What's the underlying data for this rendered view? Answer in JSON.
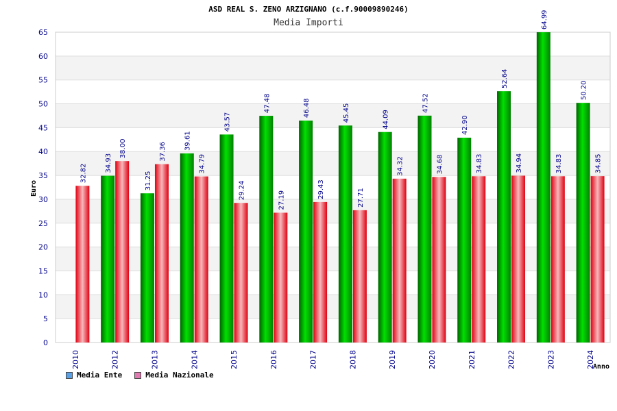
{
  "chart_data": {
    "type": "bar",
    "title": "ASD REAL S. ZENO ARZIGNANO (c.f.90009890246)",
    "subtitle": "Media Importi",
    "xlabel": "Anno",
    "ylabel": "Euro",
    "ylim": [
      0,
      65
    ],
    "ytick_step": 5,
    "grid": true,
    "legend_position": "bottom-left",
    "categories": [
      "2010",
      "2012",
      "2013",
      "2014",
      "2015",
      "2016",
      "2017",
      "2018",
      "2019",
      "2020",
      "2021",
      "2022",
      "2023",
      "2024"
    ],
    "series": [
      {
        "name": "Media Ente",
        "color": "#00b400",
        "values": [
          null,
          34.93,
          31.25,
          39.61,
          43.57,
          47.48,
          46.48,
          45.45,
          44.09,
          47.52,
          42.9,
          52.64,
          64.99,
          50.2
        ],
        "labels": [
          "",
          "34.93",
          "31.25",
          "39.61",
          "43.57",
          "47.48",
          "46.48",
          "45.45",
          "44.09",
          "47.52",
          "42.90",
          "52.64",
          "64.99",
          "50.20"
        ]
      },
      {
        "name": "Media Nazionale",
        "color": "#e8202a",
        "values": [
          32.82,
          38.0,
          37.36,
          34.79,
          29.24,
          27.19,
          29.43,
          27.71,
          34.32,
          34.68,
          34.83,
          34.94,
          34.83,
          34.85
        ],
        "labels": [
          "32.82",
          "38.00",
          "37.36",
          "34.79",
          "29.24",
          "27.19",
          "29.43",
          "27.71",
          "34.32",
          "34.68",
          "34.83",
          "34.94",
          "34.83",
          "34.85"
        ]
      }
    ]
  },
  "legend": {
    "ente_label": "Media Ente",
    "ente_swatch": "#5aa0e6",
    "nazionale_label": "Media Nazionale",
    "nazionale_swatch": "#e07ab0"
  }
}
